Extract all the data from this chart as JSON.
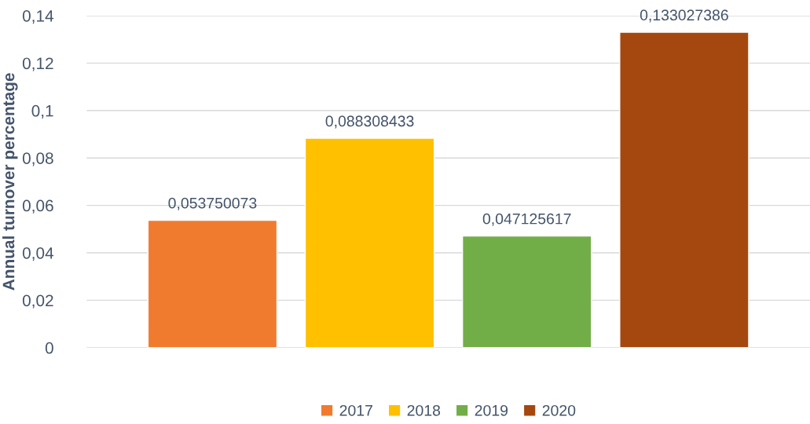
{
  "chart_data": {
    "type": "bar",
    "ylabel": "Annual turnover percentage",
    "categories": [
      null,
      null,
      null,
      null
    ],
    "series": [
      {
        "name": "2017",
        "color": "#f07b2e",
        "values": [
          0.053750073,
          null,
          null,
          null
        ],
        "value_labels": [
          "0,053750073",
          null,
          null,
          null
        ]
      },
      {
        "name": "2018",
        "color": "#ffc000",
        "values": [
          null,
          0.088308433,
          null,
          null
        ],
        "value_labels": [
          null,
          "0,088308433",
          null,
          null
        ]
      },
      {
        "name": "2019",
        "color": "#72ae48",
        "values": [
          null,
          null,
          0.047125617,
          null
        ],
        "value_labels": [
          null,
          null,
          "0,047125617",
          null
        ]
      },
      {
        "name": "2020",
        "color": "#a4480f",
        "values": [
          null,
          null,
          null,
          0.133027386
        ],
        "value_labels": [
          null,
          null,
          null,
          "0,133027386"
        ]
      }
    ],
    "ylim": [
      0,
      0.14
    ],
    "yticks": [
      {
        "value": 0,
        "label": "0"
      },
      {
        "value": 0.02,
        "label": "0,02"
      },
      {
        "value": 0.04,
        "label": "0,04"
      },
      {
        "value": 0.06,
        "label": "0,06"
      },
      {
        "value": 0.08,
        "label": "0,08"
      },
      {
        "value": 0.1,
        "label": "0,1"
      },
      {
        "value": 0.12,
        "label": "0,12"
      },
      {
        "value": 0.14,
        "label": "0,14"
      }
    ],
    "grid": "y",
    "legend": "bottom"
  }
}
